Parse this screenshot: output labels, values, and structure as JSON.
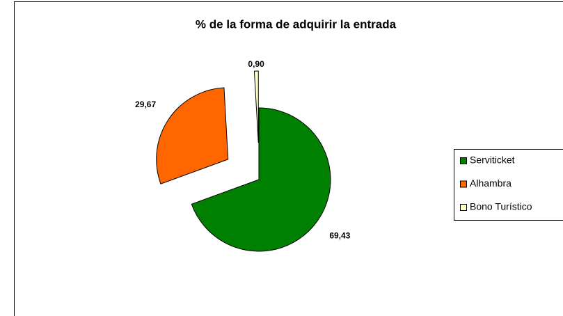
{
  "chart_data": {
    "type": "pie",
    "title": "% de la forma de adquirir la entrada",
    "categories": [
      "Serviticket",
      "Alhambra",
      "Bono Turístico"
    ],
    "values": [
      69.43,
      29.67,
      0.9
    ],
    "value_labels": [
      "69,43",
      "29,67",
      "0,90"
    ],
    "colors": [
      "#008000",
      "#ff6600",
      "#ffffcc"
    ],
    "legend": "right"
  }
}
